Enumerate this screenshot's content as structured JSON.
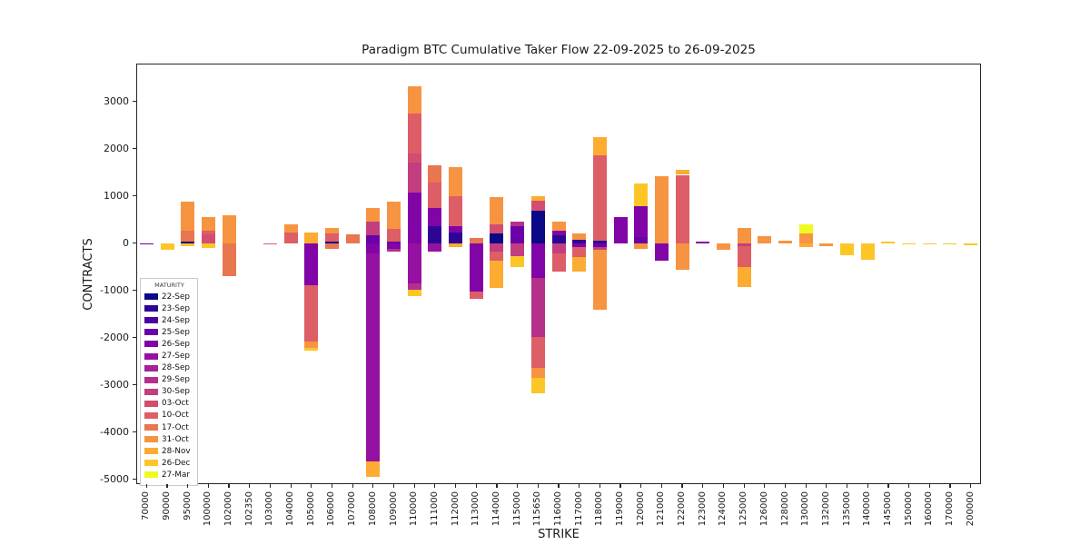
{
  "chart_data": {
    "type": "bar",
    "stacked": true,
    "title": "Paradigm BTC Cumulative Taker Flow 22-09-2025 to 26-09-2025",
    "xlabel": "STRIKE",
    "ylabel": "CONTRACTS",
    "ylim": [
      -5100,
      3800
    ],
    "yticks": [
      3000,
      2000,
      1000,
      0,
      -1000,
      -2000,
      -3000,
      -4000,
      -5000
    ],
    "grid": false,
    "background": "#ffffff",
    "legend": {
      "title": "MATURITY",
      "position": "lower-left",
      "entries": [
        {
          "label": "22-Sep",
          "color": "#0d0887"
        },
        {
          "label": "23-Sep",
          "color": "#2d0594"
        },
        {
          "label": "24-Sep",
          "color": "#4c02a1"
        },
        {
          "label": "25-Sep",
          "color": "#6a00a8"
        },
        {
          "label": "26-Sep",
          "color": "#8104a7"
        },
        {
          "label": "27-Sep",
          "color": "#9511a1"
        },
        {
          "label": "28-Sep",
          "color": "#a52297"
        },
        {
          "label": "29-Sep",
          "color": "#b5308b"
        },
        {
          "label": "30-Sep",
          "color": "#c33e7f"
        },
        {
          "label": "03-Oct",
          "color": "#d14e72"
        },
        {
          "label": "10-Oct",
          "color": "#dd5e66"
        },
        {
          "label": "17-Oct",
          "color": "#e8764f"
        },
        {
          "label": "31-Oct",
          "color": "#f79441"
        },
        {
          "label": "28-Nov",
          "color": "#fcac31"
        },
        {
          "label": "26-Dec",
          "color": "#fdc627"
        },
        {
          "label": "27-Mar",
          "color": "#f0f921"
        }
      ]
    },
    "categories": [
      "70000",
      "90000",
      "95000",
      "100000",
      "102000",
      "102350",
      "103000",
      "104000",
      "105000",
      "106000",
      "107000",
      "108000",
      "109000",
      "110000",
      "111000",
      "112000",
      "113000",
      "114000",
      "115000",
      "115650",
      "116000",
      "117000",
      "118000",
      "119000",
      "120000",
      "121000",
      "122000",
      "123000",
      "124000",
      "125000",
      "126000",
      "128000",
      "130000",
      "132000",
      "135000",
      "140000",
      "145000",
      "150000",
      "160000",
      "170000",
      "200000"
    ],
    "bars": [
      {
        "strike": "70000",
        "segments": [
          [
            "25-Sep",
            -20
          ]
        ]
      },
      {
        "strike": "90000",
        "segments": [
          [
            "26-Dec",
            -150
          ]
        ]
      },
      {
        "strike": "95000",
        "segments": [
          [
            "22-Sep",
            35
          ],
          [
            "17-Oct",
            235
          ],
          [
            "31-Oct",
            605
          ],
          [
            "26-Dec",
            -70
          ]
        ]
      },
      {
        "strike": "100000",
        "segments": [
          [
            "03-Oct",
            190
          ],
          [
            "10-Oct",
            75
          ],
          [
            "31-Oct",
            285
          ],
          [
            "26-Dec",
            -110
          ]
        ]
      },
      {
        "strike": "102000",
        "segments": [
          [
            "17-Oct",
            -690
          ],
          [
            "31-Oct",
            590
          ]
        ]
      },
      {
        "strike": "102350",
        "segments": []
      },
      {
        "strike": "103000",
        "segments": [
          [
            "10-Oct",
            -25
          ]
        ]
      },
      {
        "strike": "104000",
        "segments": [
          [
            "10-Oct",
            230
          ],
          [
            "31-Oct",
            170
          ]
        ]
      },
      {
        "strike": "105000",
        "segments": [
          [
            "26-Sep",
            -885
          ],
          [
            "10-Oct",
            -1205
          ],
          [
            "31-Oct",
            -135
          ],
          [
            "28-Nov",
            230
          ],
          [
            "26-Dec",
            -55
          ]
        ]
      },
      {
        "strike": "106000",
        "segments": [
          [
            "22-Sep",
            40
          ],
          [
            "10-Oct",
            160
          ],
          [
            "17-Oct",
            -120
          ],
          [
            "31-Oct",
            130
          ]
        ]
      },
      {
        "strike": "107000",
        "segments": [
          [
            "17-Oct",
            190
          ]
        ]
      },
      {
        "strike": "108000",
        "segments": [
          [
            "25-Sep",
            170
          ],
          [
            "26-Sep",
            -210
          ],
          [
            "27-Sep",
            -4400
          ],
          [
            "30-Sep",
            290
          ],
          [
            "31-Oct",
            280
          ],
          [
            "28-Nov",
            -330
          ]
        ]
      },
      {
        "strike": "109000",
        "segments": [
          [
            "25-Sep",
            40
          ],
          [
            "26-Sep",
            -115
          ],
          [
            "29-Sep",
            -55
          ],
          [
            "10-Oct",
            260
          ],
          [
            "31-Oct",
            580
          ]
        ]
      },
      {
        "strike": "110000",
        "segments": [
          [
            "26-Sep",
            1070
          ],
          [
            "27-Sep",
            -850
          ],
          [
            "29-Sep",
            -135
          ],
          [
            "30-Sep",
            630
          ],
          [
            "03-Oct",
            190
          ],
          [
            "10-Oct",
            860
          ],
          [
            "31-Oct",
            575
          ],
          [
            "26-Dec",
            -135
          ]
        ]
      },
      {
        "strike": "111000",
        "segments": [
          [
            "23-Sep",
            360
          ],
          [
            "26-Sep",
            385
          ],
          [
            "27-Sep",
            -170
          ],
          [
            "10-Oct",
            530
          ],
          [
            "17-Oct",
            370
          ]
        ]
      },
      {
        "strike": "112000",
        "segments": [
          [
            "23-Sep",
            230
          ],
          [
            "26-Sep",
            130
          ],
          [
            "10-Oct",
            640
          ],
          [
            "31-Oct",
            600
          ],
          [
            "28-Nov",
            -90
          ]
        ]
      },
      {
        "strike": "113000",
        "segments": [
          [
            "26-Sep",
            -1030
          ],
          [
            "10-Oct",
            -140
          ],
          [
            "17-Oct",
            110
          ]
        ]
      },
      {
        "strike": "114000",
        "segments": [
          [
            "22-Sep",
            205
          ],
          [
            "30-Sep",
            -180
          ],
          [
            "03-Oct",
            195
          ],
          [
            "10-Oct",
            -190
          ],
          [
            "31-Oct",
            575
          ],
          [
            "28-Nov",
            -570
          ]
        ]
      },
      {
        "strike": "115000",
        "segments": [
          [
            "25-Sep",
            360
          ],
          [
            "29-Sep",
            90
          ],
          [
            "30-Sep",
            -270
          ],
          [
            "26-Dec",
            -230
          ]
        ]
      },
      {
        "strike": "115650",
        "segments": [
          [
            "22-Sep",
            685
          ],
          [
            "26-Sep",
            -730
          ],
          [
            "29-Sep",
            -1260
          ],
          [
            "03-Oct",
            210
          ],
          [
            "10-Oct",
            -650
          ],
          [
            "31-Oct",
            -210
          ],
          [
            "28-Nov",
            95
          ],
          [
            "26-Dec",
            -330
          ]
        ]
      },
      {
        "strike": "116000",
        "segments": [
          [
            "23-Sep",
            170
          ],
          [
            "26-Sep",
            95
          ],
          [
            "30-Sep",
            -215
          ],
          [
            "10-Oct",
            -385
          ],
          [
            "31-Oct",
            190
          ]
        ]
      },
      {
        "strike": "117000",
        "segments": [
          [
            "23-Sep",
            75
          ],
          [
            "26-Sep",
            -85
          ],
          [
            "10-Oct",
            -215
          ],
          [
            "31-Oct",
            135
          ],
          [
            "28-Nov",
            -300
          ]
        ]
      },
      {
        "strike": "118000",
        "segments": [
          [
            "23-Sep",
            60
          ],
          [
            "25-Sep",
            -80
          ],
          [
            "30-Sep",
            -60
          ],
          [
            "10-Oct",
            1800
          ],
          [
            "31-Oct",
            -1260
          ],
          [
            "28-Nov",
            390
          ]
        ]
      },
      {
        "strike": "119000",
        "segments": [
          [
            "26-Sep",
            550
          ]
        ]
      },
      {
        "strike": "120000",
        "segments": [
          [
            "25-Sep",
            130
          ],
          [
            "26-Sep",
            650
          ],
          [
            "31-Oct",
            -120
          ],
          [
            "26-Dec",
            480
          ]
        ]
      },
      {
        "strike": "121000",
        "segments": [
          [
            "26-Sep",
            -370
          ],
          [
            "31-Oct",
            1415
          ]
        ]
      },
      {
        "strike": "122000",
        "segments": [
          [
            "10-Oct",
            1445
          ],
          [
            "31-Oct",
            -560
          ],
          [
            "28-Nov",
            100
          ]
        ]
      },
      {
        "strike": "123000",
        "segments": [
          [
            "26-Sep",
            35
          ]
        ]
      },
      {
        "strike": "124000",
        "segments": [
          [
            "31-Oct",
            -150
          ]
        ]
      },
      {
        "strike": "125000",
        "segments": [
          [
            "30-Sep",
            -60
          ],
          [
            "10-Oct",
            -440
          ],
          [
            "31-Oct",
            320
          ],
          [
            "28-Nov",
            -420
          ]
        ]
      },
      {
        "strike": "126000",
        "segments": [
          [
            "31-Oct",
            150
          ]
        ]
      },
      {
        "strike": "128000",
        "segments": [
          [
            "31-Oct",
            60
          ]
        ]
      },
      {
        "strike": "130000",
        "segments": [
          [
            "31-Oct",
            210
          ],
          [
            "28-Nov",
            -80
          ],
          [
            "27-Mar",
            190
          ]
        ]
      },
      {
        "strike": "132000",
        "segments": [
          [
            "31-Oct",
            -60
          ]
        ]
      },
      {
        "strike": "135000",
        "segments": [
          [
            "26-Dec",
            -250
          ]
        ]
      },
      {
        "strike": "140000",
        "segments": [
          [
            "26-Dec",
            -350
          ]
        ]
      },
      {
        "strike": "145000",
        "segments": [
          [
            "26-Dec",
            40
          ]
        ]
      },
      {
        "strike": "150000",
        "segments": [
          [
            "26-Dec",
            -30
          ]
        ]
      },
      {
        "strike": "160000",
        "segments": [
          [
            "26-Dec",
            -30
          ]
        ]
      },
      {
        "strike": "170000",
        "segments": [
          [
            "26-Dec",
            -30
          ]
        ]
      },
      {
        "strike": "200000",
        "segments": [
          [
            "26-Dec",
            -40
          ]
        ]
      }
    ]
  }
}
